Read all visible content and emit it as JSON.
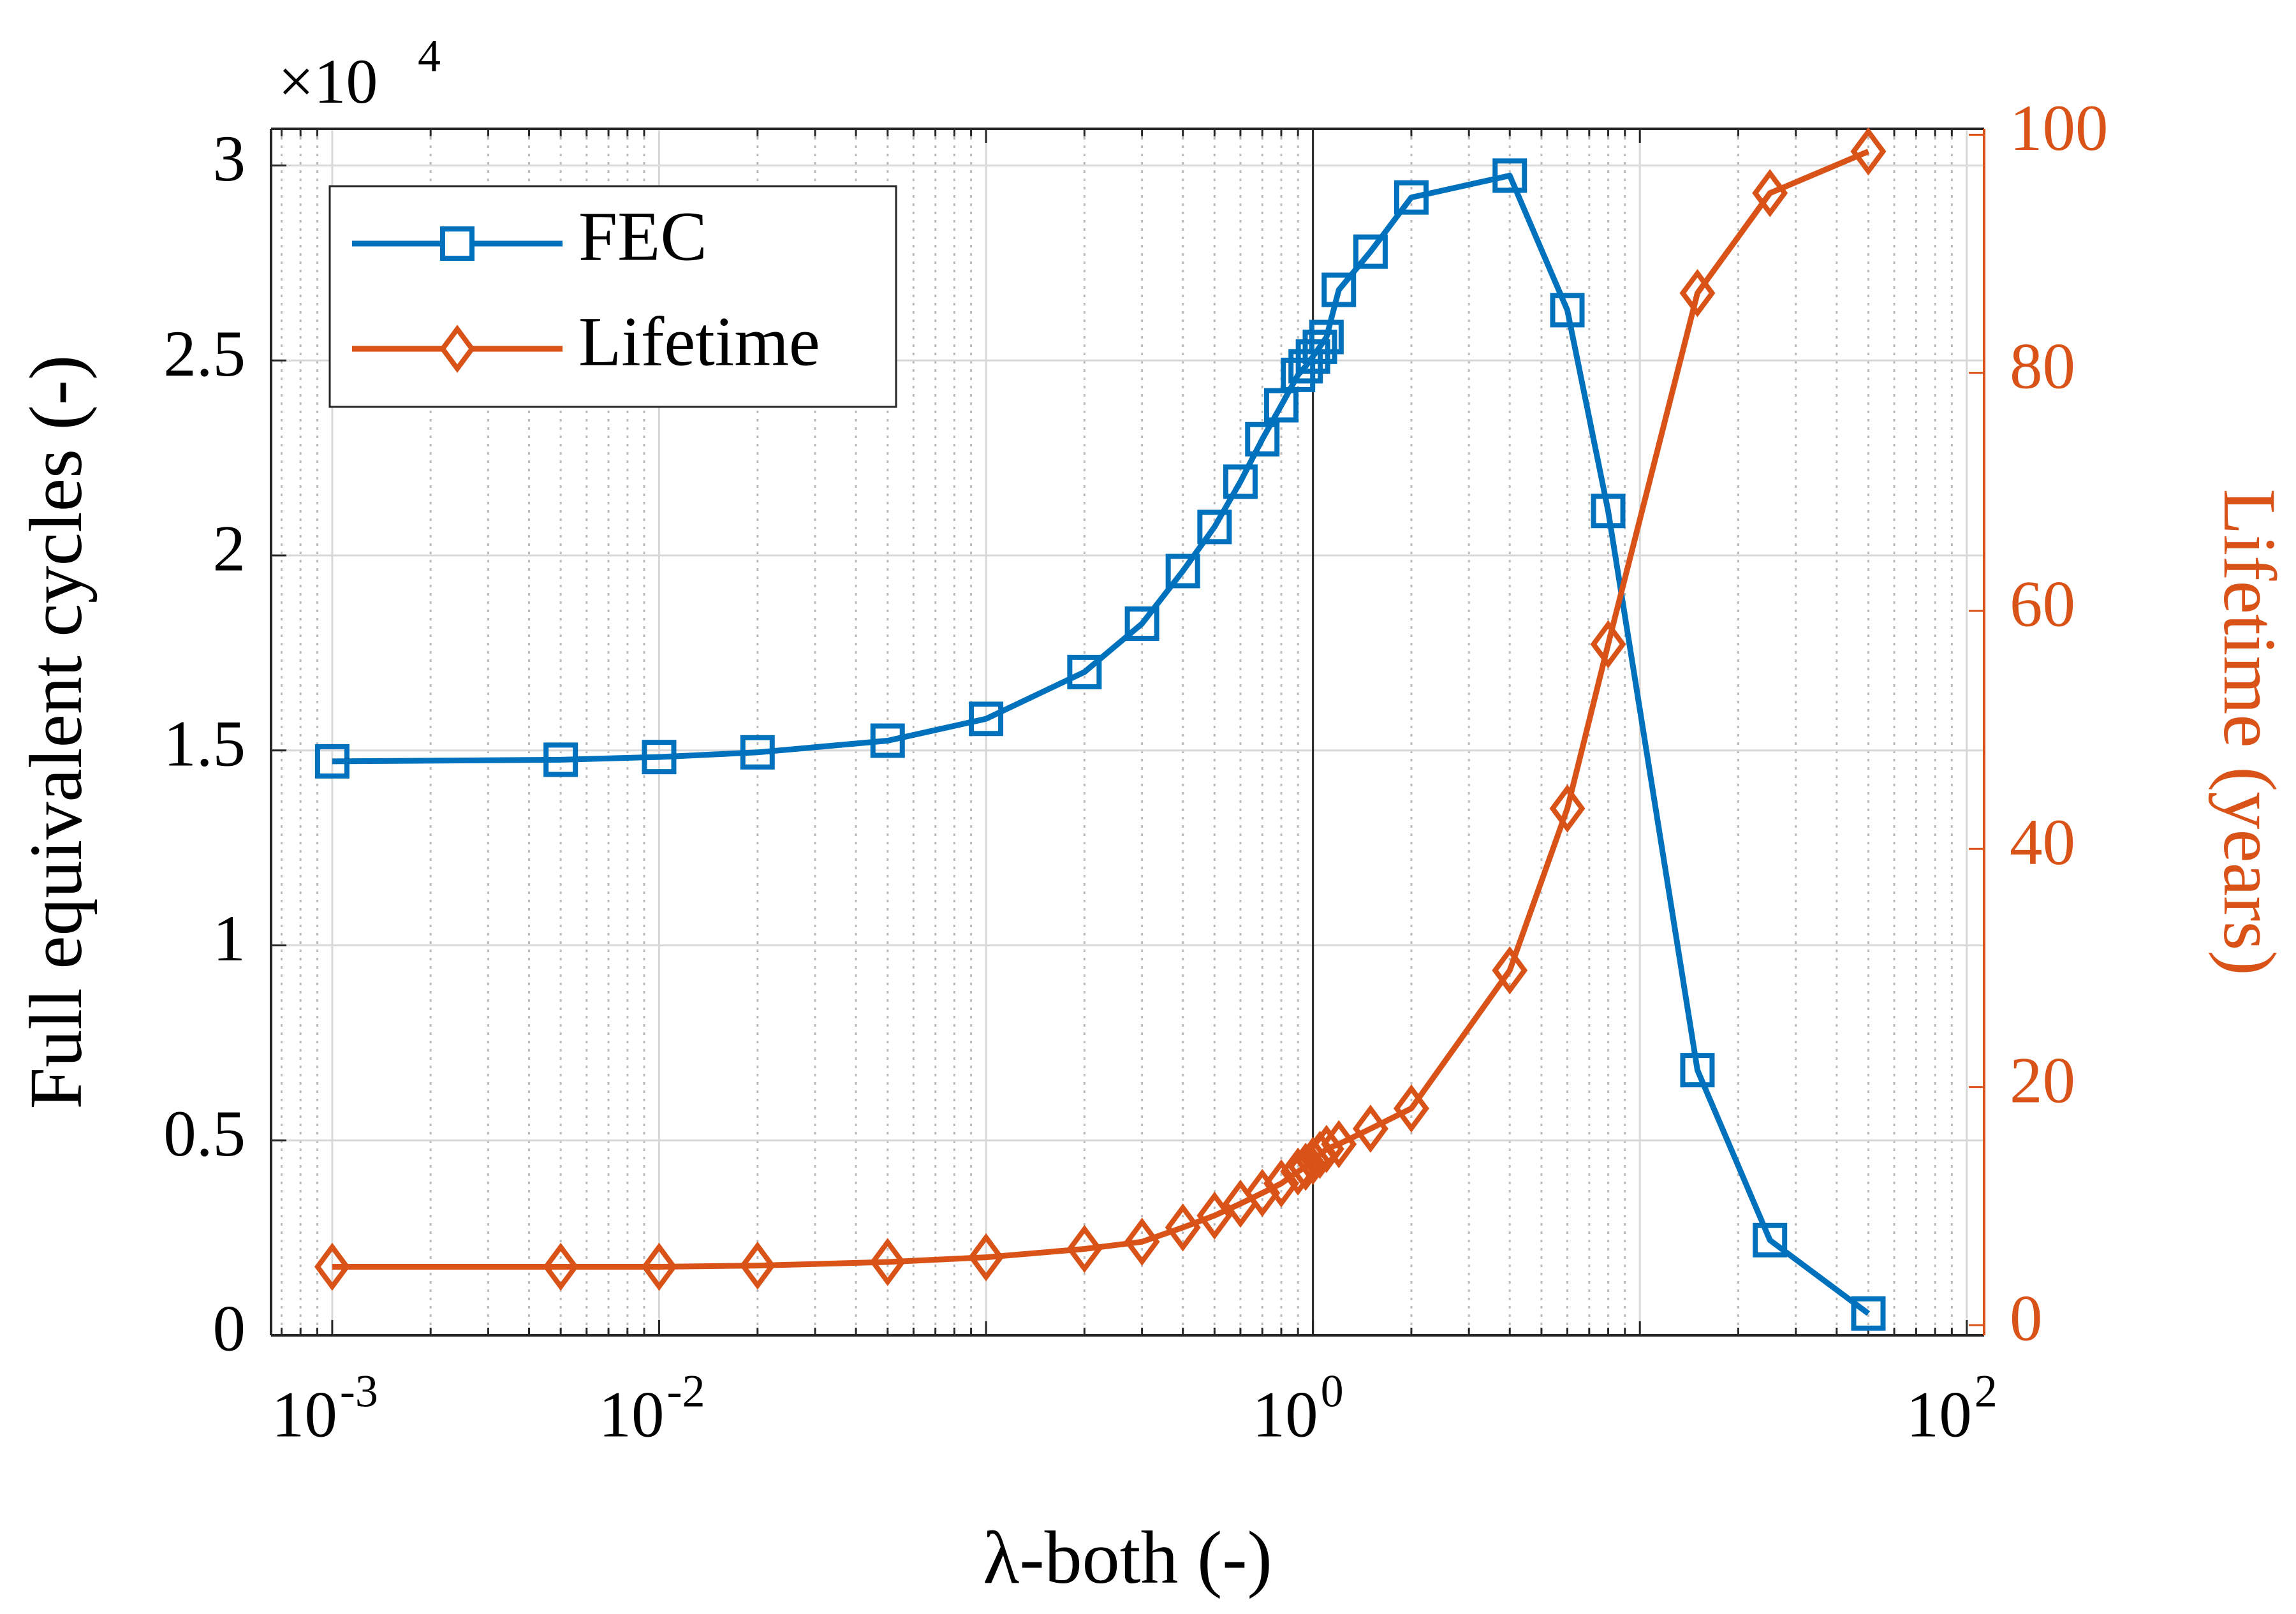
{
  "chart_data": {
    "type": "line",
    "x_label": "λ-both (-)",
    "y_label": "Full equivalent cycles (-)",
    "y2_label": "Lifetime (years)",
    "y_multiplier": {
      "base": "×10",
      "exponent": "4"
    },
    "x": [
      0.001,
      0.005,
      0.01,
      0.02,
      0.05,
      0.1,
      0.2,
      0.3,
      0.4,
      0.5,
      0.6,
      0.7,
      0.8,
      0.9,
      0.95,
      1.0,
      1.05,
      1.1,
      1.2,
      1.5,
      2,
      4,
      6,
      8,
      15,
      25,
      50
    ],
    "series": [
      {
        "name": "FEC",
        "color": "#0072BD",
        "marker": "square",
        "axis": "y",
        "values": [
          14720,
          14760,
          14830,
          14950,
          15250,
          15810,
          17010,
          18250,
          19600,
          20730,
          21890,
          22980,
          23850,
          24630,
          24850,
          25100,
          25350,
          25600,
          26810,
          27790,
          29180,
          29740,
          26290,
          21140,
          6800,
          2440,
          560
        ]
      },
      {
        "name": "Lifetime",
        "color": "#D95319",
        "marker": "diamond",
        "axis": "y2",
        "values": [
          4.9,
          4.9,
          4.9,
          5.0,
          5.3,
          5.7,
          6.4,
          7.0,
          8.2,
          9.2,
          10.2,
          11.1,
          11.9,
          12.9,
          13.3,
          13.8,
          14.3,
          14.8,
          15.2,
          16.5,
          18.2,
          29.8,
          43.4,
          57.2,
          86.7,
          95.1,
          98.6
        ]
      }
    ],
    "xscale": "log",
    "xlim": [
      0.00065,
      113
    ],
    "xticks": [
      {
        "value": 0.001,
        "label": "10",
        "exponent": "-3"
      },
      {
        "value": 0.01,
        "label": "10",
        "exponent": "-2"
      },
      {
        "value": 1,
        "label": "10",
        "exponent": "0"
      },
      {
        "value": 100,
        "label": "10",
        "exponent": "2"
      }
    ],
    "ylim": [
      0,
      30940
    ],
    "yticks": [
      0,
      {
        "value": 5000,
        "label": "0.5"
      },
      {
        "value": 10000,
        "label": "1"
      },
      {
        "value": 15000,
        "label": "1.5"
      },
      {
        "value": 20000,
        "label": "2"
      },
      {
        "value": 25000,
        "label": "2.5"
      },
      {
        "value": 30000,
        "label": "3"
      }
    ],
    "y2lim": [
      -0.86,
      100.5
    ],
    "y2ticks": [
      0,
      20,
      40,
      60,
      80,
      100
    ],
    "y2color": "#D95319",
    "vline": 1,
    "grid": true,
    "minor_grid": true,
    "legend": "upper left"
  }
}
